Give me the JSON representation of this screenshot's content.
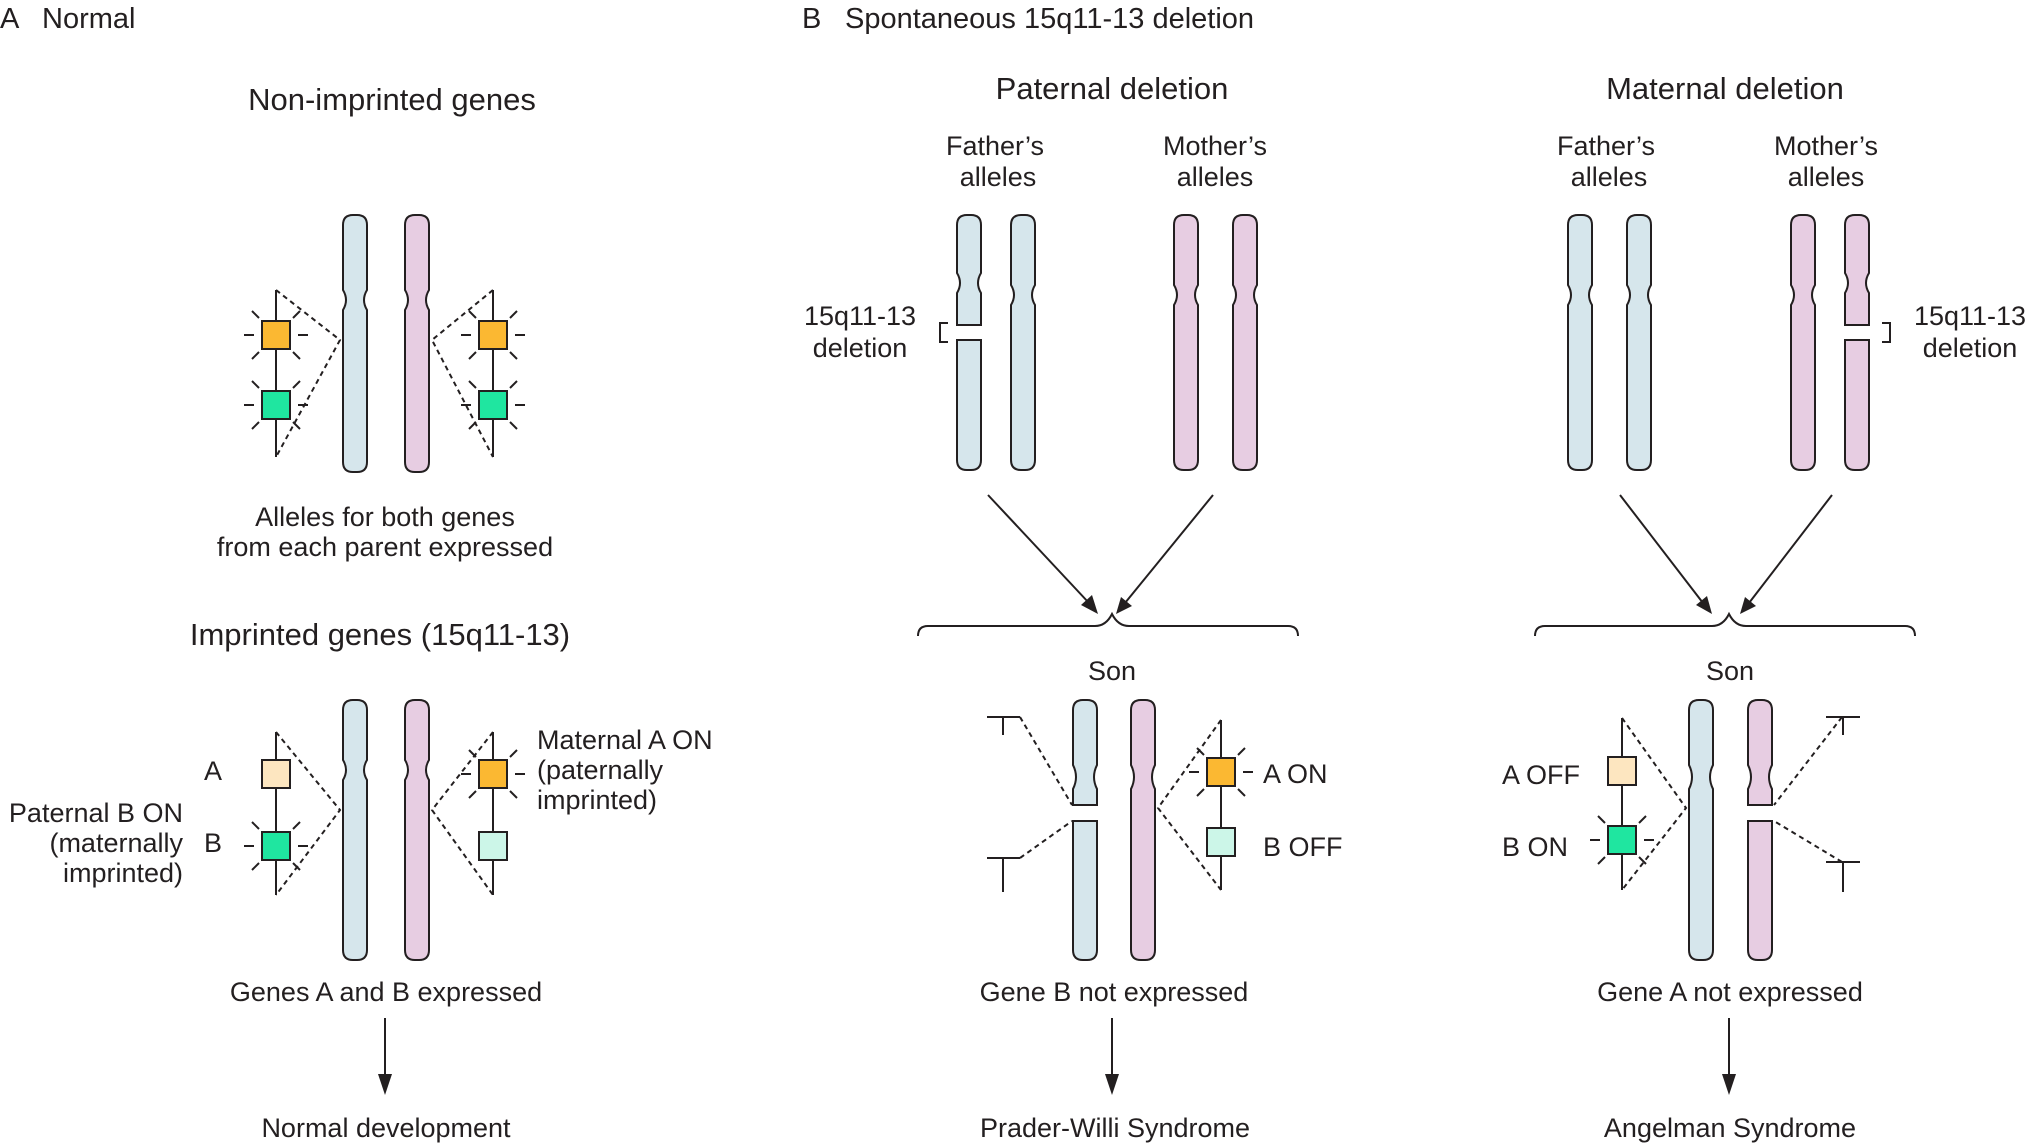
{
  "panel_a": {
    "letter": "A",
    "title": "Normal",
    "nonimprinted_title": "Non-imprinted genes",
    "nonimprinted_caption_1": "Alleles for both genes",
    "nonimprinted_caption_2": "from each parent expressed",
    "imprinted_title": "Imprinted genes (15q11-13)",
    "gene_a_label": "A",
    "gene_b_label": "B",
    "paternal_label_1": "Paternal B ON",
    "paternal_label_2": "(maternally",
    "paternal_label_3": "imprinted)",
    "maternal_label_1": "Maternal A ON",
    "maternal_label_2": "(paternally",
    "maternal_label_3": "imprinted)",
    "expressed_caption": "Genes A and B expressed",
    "outcome": "Normal development"
  },
  "panel_b": {
    "letter": "B",
    "title": "Spontaneous 15q11-13 deletion",
    "paternal": {
      "title": "Paternal deletion",
      "father_1": "Father’s",
      "father_2": "alleles",
      "mother_1": "Mother’s",
      "mother_2": "alleles",
      "deletion_1": "15q11-13",
      "deletion_2": "deletion",
      "son": "Son",
      "gene_a_state": "A ON",
      "gene_b_state": "B OFF",
      "caption": "Gene B not expressed",
      "outcome": "Prader-Willi Syndrome"
    },
    "maternal": {
      "title": "Maternal deletion",
      "father_1": "Father’s",
      "father_2": "alleles",
      "mother_1": "Mother’s",
      "mother_2": "alleles",
      "deletion_1": "15q11-13",
      "deletion_2": "deletion",
      "son": "Son",
      "gene_a_state": "A OFF",
      "gene_b_state": "B ON",
      "caption": "Gene A not expressed",
      "outcome": "Angelman Syndrome"
    }
  },
  "colors": {
    "paternal_chromosome": "#d6e6ec",
    "maternal_chromosome": "#e7cde2",
    "gene_a_on": "#fbb832",
    "gene_a_off": "#fde6c0",
    "gene_b_on": "#1fe6a0",
    "gene_b_off": "#ccf6e8"
  }
}
